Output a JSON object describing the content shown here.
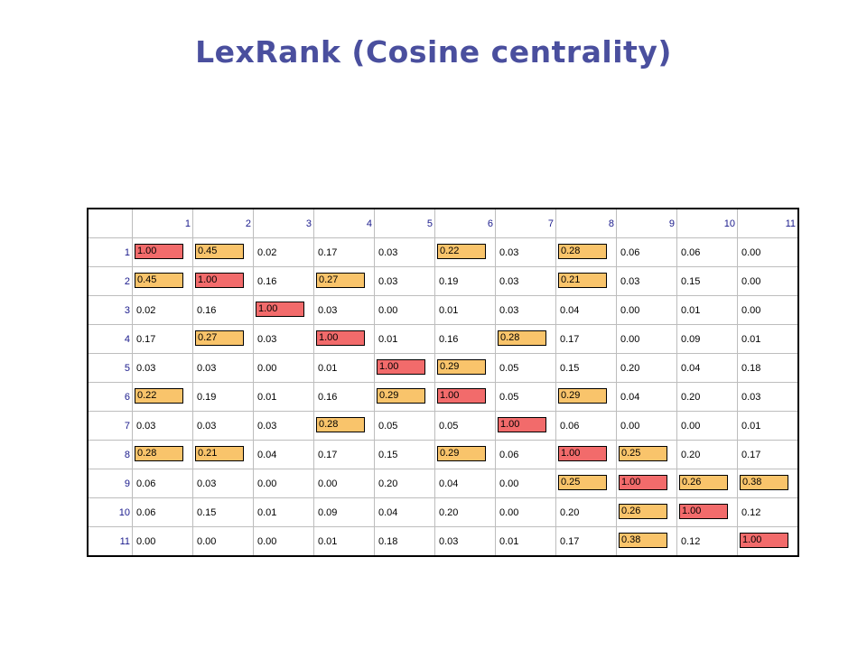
{
  "title": "LexRank (Cosine centrality)",
  "colors": {
    "diag": "#f26b6b",
    "high": "#f9c46b",
    "title": "#4a4f9e"
  },
  "headers": [
    "1",
    "2",
    "3",
    "4",
    "5",
    "6",
    "7",
    "8",
    "9",
    "10",
    "11"
  ],
  "rows": [
    {
      "label": "1",
      "cells": [
        {
          "v": "1.00",
          "hl": "diag"
        },
        {
          "v": "0.45",
          "hl": "high"
        },
        {
          "v": "0.02"
        },
        {
          "v": "0.17"
        },
        {
          "v": "0.03"
        },
        {
          "v": "0.22",
          "hl": "high"
        },
        {
          "v": "0.03"
        },
        {
          "v": "0.28",
          "hl": "high"
        },
        {
          "v": "0.06"
        },
        {
          "v": "0.06"
        },
        {
          "v": "0.00"
        }
      ]
    },
    {
      "label": "2",
      "cells": [
        {
          "v": "0.45",
          "hl": "high"
        },
        {
          "v": "1.00",
          "hl": "diag"
        },
        {
          "v": "0.16"
        },
        {
          "v": "0.27",
          "hl": "high"
        },
        {
          "v": "0.03"
        },
        {
          "v": "0.19"
        },
        {
          "v": "0.03"
        },
        {
          "v": "0.21",
          "hl": "high"
        },
        {
          "v": "0.03"
        },
        {
          "v": "0.15"
        },
        {
          "v": "0.00"
        }
      ]
    },
    {
      "label": "3",
      "cells": [
        {
          "v": "0.02"
        },
        {
          "v": "0.16"
        },
        {
          "v": "1.00",
          "hl": "diag"
        },
        {
          "v": "0.03"
        },
        {
          "v": "0.00"
        },
        {
          "v": "0.01"
        },
        {
          "v": "0.03"
        },
        {
          "v": "0.04"
        },
        {
          "v": "0.00"
        },
        {
          "v": "0.01"
        },
        {
          "v": "0.00"
        }
      ]
    },
    {
      "label": "4",
      "cells": [
        {
          "v": "0.17"
        },
        {
          "v": "0.27",
          "hl": "high"
        },
        {
          "v": "0.03"
        },
        {
          "v": "1.00",
          "hl": "diag"
        },
        {
          "v": "0.01"
        },
        {
          "v": "0.16"
        },
        {
          "v": "0.28",
          "hl": "high"
        },
        {
          "v": "0.17"
        },
        {
          "v": "0.00"
        },
        {
          "v": "0.09"
        },
        {
          "v": "0.01"
        }
      ]
    },
    {
      "label": "5",
      "cells": [
        {
          "v": "0.03"
        },
        {
          "v": "0.03"
        },
        {
          "v": "0.00"
        },
        {
          "v": "0.01"
        },
        {
          "v": "1.00",
          "hl": "diag"
        },
        {
          "v": "0.29",
          "hl": "high"
        },
        {
          "v": "0.05"
        },
        {
          "v": "0.15"
        },
        {
          "v": "0.20"
        },
        {
          "v": "0.04"
        },
        {
          "v": "0.18"
        }
      ]
    },
    {
      "label": "6",
      "cells": [
        {
          "v": "0.22",
          "hl": "high"
        },
        {
          "v": "0.19"
        },
        {
          "v": "0.01"
        },
        {
          "v": "0.16"
        },
        {
          "v": "0.29",
          "hl": "high"
        },
        {
          "v": "1.00",
          "hl": "diag"
        },
        {
          "v": "0.05"
        },
        {
          "v": "0.29",
          "hl": "high"
        },
        {
          "v": "0.04"
        },
        {
          "v": "0.20"
        },
        {
          "v": "0.03"
        }
      ]
    },
    {
      "label": "7",
      "cells": [
        {
          "v": "0.03"
        },
        {
          "v": "0.03"
        },
        {
          "v": "0.03"
        },
        {
          "v": "0.28",
          "hl": "high"
        },
        {
          "v": "0.05"
        },
        {
          "v": "0.05"
        },
        {
          "v": "1.00",
          "hl": "diag"
        },
        {
          "v": "0.06"
        },
        {
          "v": "0.00"
        },
        {
          "v": "0.00"
        },
        {
          "v": "0.01"
        }
      ]
    },
    {
      "label": "8",
      "cells": [
        {
          "v": "0.28",
          "hl": "high"
        },
        {
          "v": "0.21",
          "hl": "high"
        },
        {
          "v": "0.04"
        },
        {
          "v": "0.17"
        },
        {
          "v": "0.15"
        },
        {
          "v": "0.29",
          "hl": "high"
        },
        {
          "v": "0.06"
        },
        {
          "v": "1.00",
          "hl": "diag"
        },
        {
          "v": "0.25",
          "hl": "high"
        },
        {
          "v": "0.20"
        },
        {
          "v": "0.17"
        }
      ]
    },
    {
      "label": "9",
      "cells": [
        {
          "v": "0.06"
        },
        {
          "v": "0.03"
        },
        {
          "v": "0.00"
        },
        {
          "v": "0.00"
        },
        {
          "v": "0.20"
        },
        {
          "v": "0.04"
        },
        {
          "v": "0.00"
        },
        {
          "v": "0.25",
          "hl": "high"
        },
        {
          "v": "1.00",
          "hl": "diag"
        },
        {
          "v": "0.26",
          "hl": "high"
        },
        {
          "v": "0.38",
          "hl": "high"
        }
      ]
    },
    {
      "label": "10",
      "cells": [
        {
          "v": "0.06"
        },
        {
          "v": "0.15"
        },
        {
          "v": "0.01"
        },
        {
          "v": "0.09"
        },
        {
          "v": "0.04"
        },
        {
          "v": "0.20"
        },
        {
          "v": "0.00"
        },
        {
          "v": "0.20"
        },
        {
          "v": "0.26",
          "hl": "high"
        },
        {
          "v": "1.00",
          "hl": "diag"
        },
        {
          "v": "0.12"
        }
      ]
    },
    {
      "label": "11",
      "cells": [
        {
          "v": "0.00"
        },
        {
          "v": "0.00"
        },
        {
          "v": "0.00"
        },
        {
          "v": "0.01"
        },
        {
          "v": "0.18"
        },
        {
          "v": "0.03"
        },
        {
          "v": "0.01"
        },
        {
          "v": "0.17"
        },
        {
          "v": "0.38",
          "hl": "high"
        },
        {
          "v": "0.12"
        },
        {
          "v": "1.00",
          "hl": "diag"
        }
      ]
    }
  ]
}
